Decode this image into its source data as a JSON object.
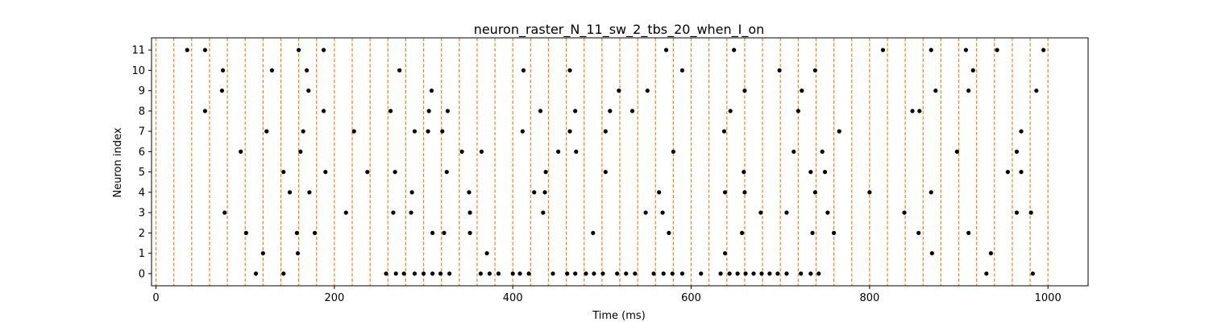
{
  "chart_data": {
    "type": "scatter",
    "title": "neuron_raster_N_11_sw_2_tbs_20_when_I_on",
    "xlabel": "Time (ms)",
    "ylabel": "Neuron index",
    "xlim": [
      -5,
      1045
    ],
    "ylim": [
      -0.6,
      11.6
    ],
    "xticks": [
      0,
      200,
      400,
      600,
      800,
      1000
    ],
    "yticks": [
      0,
      1,
      2,
      3,
      4,
      5,
      6,
      7,
      8,
      9,
      10,
      11
    ],
    "grid": false,
    "vlines": {
      "positions": [
        0,
        20,
        40,
        60,
        80,
        100,
        120,
        140,
        160,
        180,
        200,
        220,
        240,
        260,
        280,
        300,
        320,
        340,
        360,
        380,
        400,
        420,
        440,
        460,
        480,
        500,
        520,
        540,
        560,
        580,
        600,
        620,
        640,
        660,
        680,
        700,
        720,
        740,
        760,
        780,
        800,
        820,
        840,
        860,
        880,
        900,
        920,
        940,
        960,
        980,
        1000
      ],
      "color": "#ff7f0e",
      "style": "dashed"
    },
    "marker_color": "#000000",
    "spikes": [
      {
        "neuron": 11,
        "times": [
          35,
          55,
          160,
          188,
          572,
          648,
          815,
          869,
          908,
          943,
          995
        ]
      },
      {
        "neuron": 10,
        "times": [
          75,
          130,
          169,
          273,
          412,
          464,
          590,
          699,
          739,
          916
        ]
      },
      {
        "neuron": 9,
        "times": [
          74,
          171,
          309,
          519,
          551,
          660,
          724,
          874,
          911,
          987
        ]
      },
      {
        "neuron": 8,
        "times": [
          55,
          188,
          263,
          306,
          327,
          431,
          470,
          509,
          534,
          644,
          720,
          848,
          856
        ]
      },
      {
        "neuron": 7,
        "times": [
          124,
          165,
          222,
          290,
          305,
          321,
          411,
          464,
          504,
          637,
          766,
          970
        ]
      },
      {
        "neuron": 6,
        "times": [
          95,
          162,
          343,
          365,
          451,
          471,
          580,
          715,
          747,
          898,
          965
        ]
      },
      {
        "neuron": 5,
        "times": [
          143,
          190,
          237,
          268,
          326,
          437,
          504,
          659,
          734,
          750,
          955,
          970
        ]
      },
      {
        "neuron": 4,
        "times": [
          150,
          172,
          287,
          351,
          424,
          436,
          564,
          638,
          660,
          739,
          800,
          869
        ]
      },
      {
        "neuron": 3,
        "times": [
          77,
          213,
          266,
          286,
          352,
          434,
          549,
          568,
          678,
          707,
          753,
          839,
          965,
          981
        ]
      },
      {
        "neuron": 2,
        "times": [
          101,
          158,
          178,
          310,
          323,
          352,
          490,
          575,
          657,
          736,
          760,
          855,
          911
        ]
      },
      {
        "neuron": 1,
        "times": [
          120,
          159,
          371,
          638,
          870,
          936
        ]
      },
      {
        "neuron": 0,
        "times": [
          112,
          143,
          258,
          269,
          278,
          290,
          300,
          310,
          319,
          329,
          364,
          374,
          384,
          400,
          408,
          418,
          445,
          461,
          470,
          482,
          491,
          501,
          517,
          527,
          537,
          558,
          569,
          579,
          590,
          611,
          633,
          643,
          652,
          661,
          670,
          679,
          688,
          697,
          707,
          723,
          734,
          743,
          931,
          983
        ]
      }
    ]
  }
}
